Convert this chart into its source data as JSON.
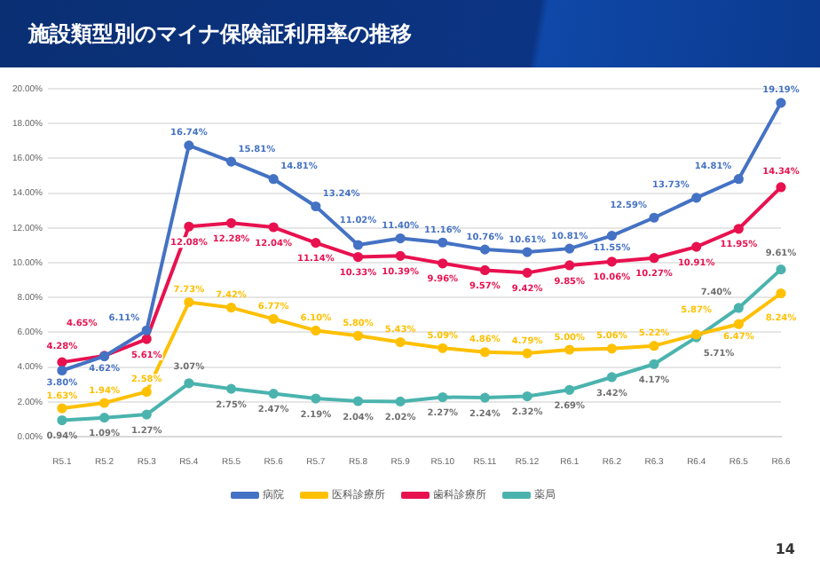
{
  "chart_data": {
    "type": "line",
    "title": "施設類型別のマイナ保険証利用率の推移",
    "categories": [
      "R5.1",
      "R5.2",
      "R5.3",
      "R5.4",
      "R5.5",
      "R5.6",
      "R5.7",
      "R5.8",
      "R5.9",
      "R5.10",
      "R5.11",
      "R5.12",
      "R6.1",
      "R6.2",
      "R6.3",
      "R6.4",
      "R6.5",
      "R6.6"
    ],
    "series": [
      {
        "name": "病院",
        "color": "#4472c4",
        "values": [
          3.8,
          4.62,
          6.11,
          16.74,
          15.81,
          14.81,
          13.24,
          11.02,
          11.4,
          11.16,
          10.76,
          10.61,
          10.81,
          11.55,
          12.59,
          13.73,
          14.81,
          19.19
        ],
        "value_labels": [
          "3.80%",
          "4.62%",
          "6.11%",
          "16.74%",
          "15.81%",
          "14.81%",
          "13.24%",
          "11.02%",
          "11.40%",
          "11.16%",
          "10.76%",
          "10.61%",
          "10.81%",
          "11.55%",
          "12.59%",
          "13.73%",
          "14.81%",
          "19.19%"
        ]
      },
      {
        "name": "医科診療所",
        "color": "#ffc000",
        "values": [
          1.63,
          1.94,
          2.58,
          7.73,
          7.42,
          6.77,
          6.1,
          5.8,
          5.43,
          5.09,
          4.86,
          4.79,
          5.0,
          5.06,
          5.22,
          5.87,
          6.47,
          8.24
        ],
        "value_labels": [
          "1.63%",
          "1.94%",
          "2.58%",
          "7.73%",
          "7.42%",
          "6.77%",
          "6.10%",
          "5.80%",
          "5.43%",
          "5.09%",
          "4.86%",
          "4.79%",
          "5.00%",
          "5.06%",
          "5.22%",
          "5.87%",
          "6.47%",
          "8.24%"
        ]
      },
      {
        "name": "歯科診療所",
        "color": "#e8114f",
        "values": [
          4.28,
          4.65,
          5.61,
          12.08,
          12.28,
          12.04,
          11.14,
          10.33,
          10.39,
          9.96,
          9.57,
          9.42,
          9.85,
          10.06,
          10.27,
          10.91,
          11.95,
          14.34
        ],
        "value_labels": [
          "4.28%",
          "4.65%",
          "5.61%",
          "12.08%",
          "12.28%",
          "12.04%",
          "11.14%",
          "10.33%",
          "10.39%",
          "9.96%",
          "9.57%",
          "9.42%",
          "9.85%",
          "10.06%",
          "10.27%",
          "10.91%",
          "11.95%",
          "14.34%"
        ]
      },
      {
        "name": "薬局",
        "color": "#4bb3ae",
        "values": [
          0.94,
          1.09,
          1.27,
          3.07,
          2.75,
          2.47,
          2.19,
          2.04,
          2.02,
          2.27,
          2.24,
          2.32,
          2.69,
          3.42,
          4.17,
          5.71,
          7.4,
          9.61
        ],
        "value_labels": [
          "0.94%",
          "1.09%",
          "1.27%",
          "3.07%",
          "2.75%",
          "2.47%",
          "2.19%",
          "2.04%",
          "2.02%",
          "2.27%",
          "2.24%",
          "2.32%",
          "2.69%",
          "3.42%",
          "4.17%",
          "5.71%",
          "7.40%",
          "9.61%"
        ]
      }
    ],
    "ylim": [
      0,
      20
    ],
    "yticks": [
      {
        "value": 0,
        "label": "0.00%"
      },
      {
        "value": 2,
        "label": "2.00%"
      },
      {
        "value": 4,
        "label": "4.00%"
      },
      {
        "value": 6,
        "label": "6.00%"
      },
      {
        "value": 8,
        "label": "8.00%"
      },
      {
        "value": 10,
        "label": "10.00%"
      },
      {
        "value": 12,
        "label": "12.00%"
      },
      {
        "value": 14,
        "label": "14.00%"
      },
      {
        "value": 16,
        "label": "16.00%"
      },
      {
        "value": 18,
        "label": "18.00%"
      },
      {
        "value": 20,
        "label": "20.00%"
      }
    ],
    "grid": "y",
    "legend": "bottom",
    "marker": "circle",
    "line_style": "solid",
    "annotations": [
      "14"
    ]
  }
}
